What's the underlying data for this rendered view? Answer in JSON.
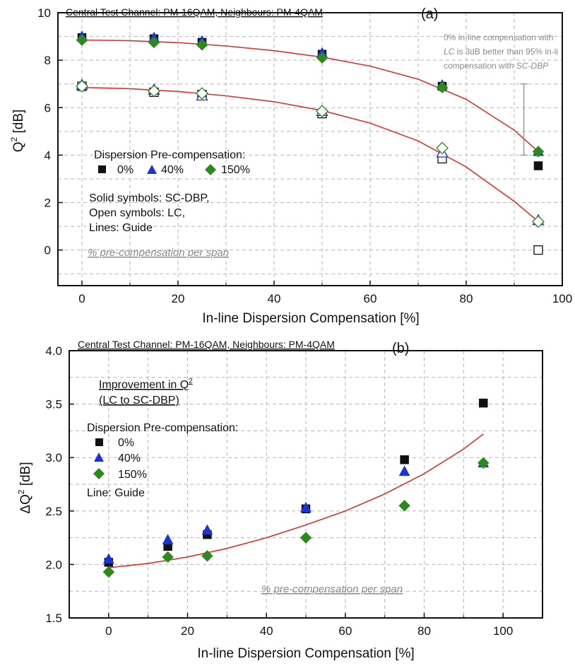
{
  "chart_data": [
    {
      "type": "scatter",
      "panel_label": "(a)",
      "header": "Central Test Channel: PM-16QAM, Neighbours: PM-4QAM",
      "xlabel": "In-line  Dispersion Compensation [%]",
      "ylabel_main": "Q",
      "ylabel_sup": "2",
      "ylabel_unit": " [dB]",
      "xlim": [
        -5,
        100
      ],
      "ylim": [
        -1.5,
        10
      ],
      "xticks": [
        0,
        20,
        40,
        60,
        80,
        100
      ],
      "yticks": [
        0,
        2,
        4,
        6,
        8,
        10
      ],
      "grid": true,
      "legend_title": "Dispersion Pre-compensation:",
      "legend": [
        {
          "label": "0%",
          "marker": "square",
          "color": "#111111"
        },
        {
          "label": "40%",
          "marker": "triangle",
          "color": "#1a33d6"
        },
        {
          "label": "150%",
          "marker": "diamond",
          "color": "#2a8a1a"
        }
      ],
      "legend_notes": [
        "Solid symbols: SC-DBP,",
        "Open symbols: LC,",
        "Lines: Guide"
      ],
      "footnote": "% pre-compensation per span",
      "annotation": {
        "line1": "0% in-line compensation with",
        "line2_italic": "LC",
        "line2_rest": " is 3dB better than 95% in-li",
        "line3_rest": "compensation with ",
        "line3_italic": "SC-DBP",
        "bar_x": 92,
        "bar_ymin": 4,
        "bar_ymax": 7
      },
      "x": [
        0,
        15,
        25,
        50,
        75,
        95
      ],
      "series": [
        {
          "name": "SC-DBP 0%",
          "marker": "square",
          "filled": true,
          "color": "#111111",
          "values": [
            8.95,
            8.9,
            8.75,
            8.25,
            6.9,
            3.55
          ]
        },
        {
          "name": "SC-DBP 40%",
          "marker": "triangle",
          "filled": true,
          "color": "#1a33d6",
          "values": [
            9.0,
            8.95,
            8.8,
            8.3,
            6.95,
            4.15
          ]
        },
        {
          "name": "SC-DBP 150%",
          "marker": "diamond",
          "filled": true,
          "color": "#2a8a1a",
          "values": [
            8.85,
            8.75,
            8.65,
            8.1,
            6.85,
            4.15
          ]
        },
        {
          "name": "LC 0%",
          "marker": "square",
          "filled": false,
          "color": "#111111",
          "values": [
            6.9,
            6.65,
            6.55,
            5.75,
            3.85,
            0.0
          ]
        },
        {
          "name": "LC 40%",
          "marker": "triangle",
          "filled": false,
          "color": "#1a33d6",
          "values": [
            6.95,
            6.75,
            6.5,
            5.85,
            4.1,
            1.25
          ]
        },
        {
          "name": "LC 150%",
          "marker": "diamond",
          "filled": false,
          "color": "#2a8a1a",
          "values": [
            6.9,
            6.7,
            6.6,
            5.85,
            4.3,
            1.2
          ]
        }
      ],
      "guides": [
        {
          "x": [
            0,
            10,
            20,
            30,
            40,
            50,
            60,
            70,
            80,
            90,
            95
          ],
          "y": [
            8.85,
            8.82,
            8.74,
            8.6,
            8.4,
            8.13,
            7.75,
            7.2,
            6.35,
            5.05,
            4.15
          ]
        },
        {
          "x": [
            0,
            10,
            20,
            30,
            40,
            50,
            60,
            70,
            80,
            90,
            95
          ],
          "y": [
            6.85,
            6.8,
            6.68,
            6.5,
            6.25,
            5.88,
            5.35,
            4.6,
            3.5,
            2.05,
            1.2
          ]
        }
      ]
    },
    {
      "type": "scatter",
      "panel_label": "(b)",
      "header": "Central Test Channel: PM-16QAM, Neighbours: PM-4QAM",
      "xlabel": "In-line  Dispersion Compensation [%]",
      "ylabel_main": "ΔQ",
      "ylabel_sup": "2",
      "ylabel_unit": " [dB]",
      "xlim": [
        -10,
        110
      ],
      "ylim": [
        1.5,
        4.0
      ],
      "xticks": [
        0,
        20,
        40,
        60,
        80,
        100
      ],
      "yticks": [
        1.5,
        2.0,
        2.5,
        3.0,
        3.5,
        4.0
      ],
      "grid": true,
      "title_line1": "Improvement in Q",
      "title_sup": "2",
      "title_line2": "(LC to SC-DBP)",
      "legend_title": "Dispersion Pre-compensation:",
      "legend": [
        {
          "label": "0%",
          "marker": "square",
          "color": "#111111"
        },
        {
          "label": "40%",
          "marker": "triangle",
          "color": "#1a33d6"
        },
        {
          "label": "150%",
          "marker": "diamond",
          "color": "#2a8a1a"
        }
      ],
      "legend_notes": [
        "Line: Guide"
      ],
      "footnote": "% pre-compensation per span",
      "x": [
        0,
        15,
        25,
        50,
        75,
        95
      ],
      "series": [
        {
          "name": "0%",
          "marker": "square",
          "filled": true,
          "color": "#111111",
          "values": [
            2.02,
            2.17,
            2.28,
            2.52,
            2.98,
            3.51
          ]
        },
        {
          "name": "40%",
          "marker": "triangle",
          "filled": true,
          "color": "#1a33d6",
          "values": [
            2.05,
            2.23,
            2.32,
            2.53,
            2.87,
            2.95
          ]
        },
        {
          "name": "150%",
          "marker": "diamond",
          "filled": true,
          "color": "#2a8a1a",
          "values": [
            1.93,
            2.07,
            2.08,
            2.25,
            2.55,
            2.95
          ]
        }
      ],
      "guides": [
        {
          "x": [
            0,
            10,
            20,
            30,
            40,
            50,
            60,
            70,
            80,
            90,
            95
          ],
          "y": [
            1.97,
            2.01,
            2.07,
            2.15,
            2.25,
            2.37,
            2.5,
            2.66,
            2.85,
            3.08,
            3.22
          ]
        }
      ]
    }
  ]
}
